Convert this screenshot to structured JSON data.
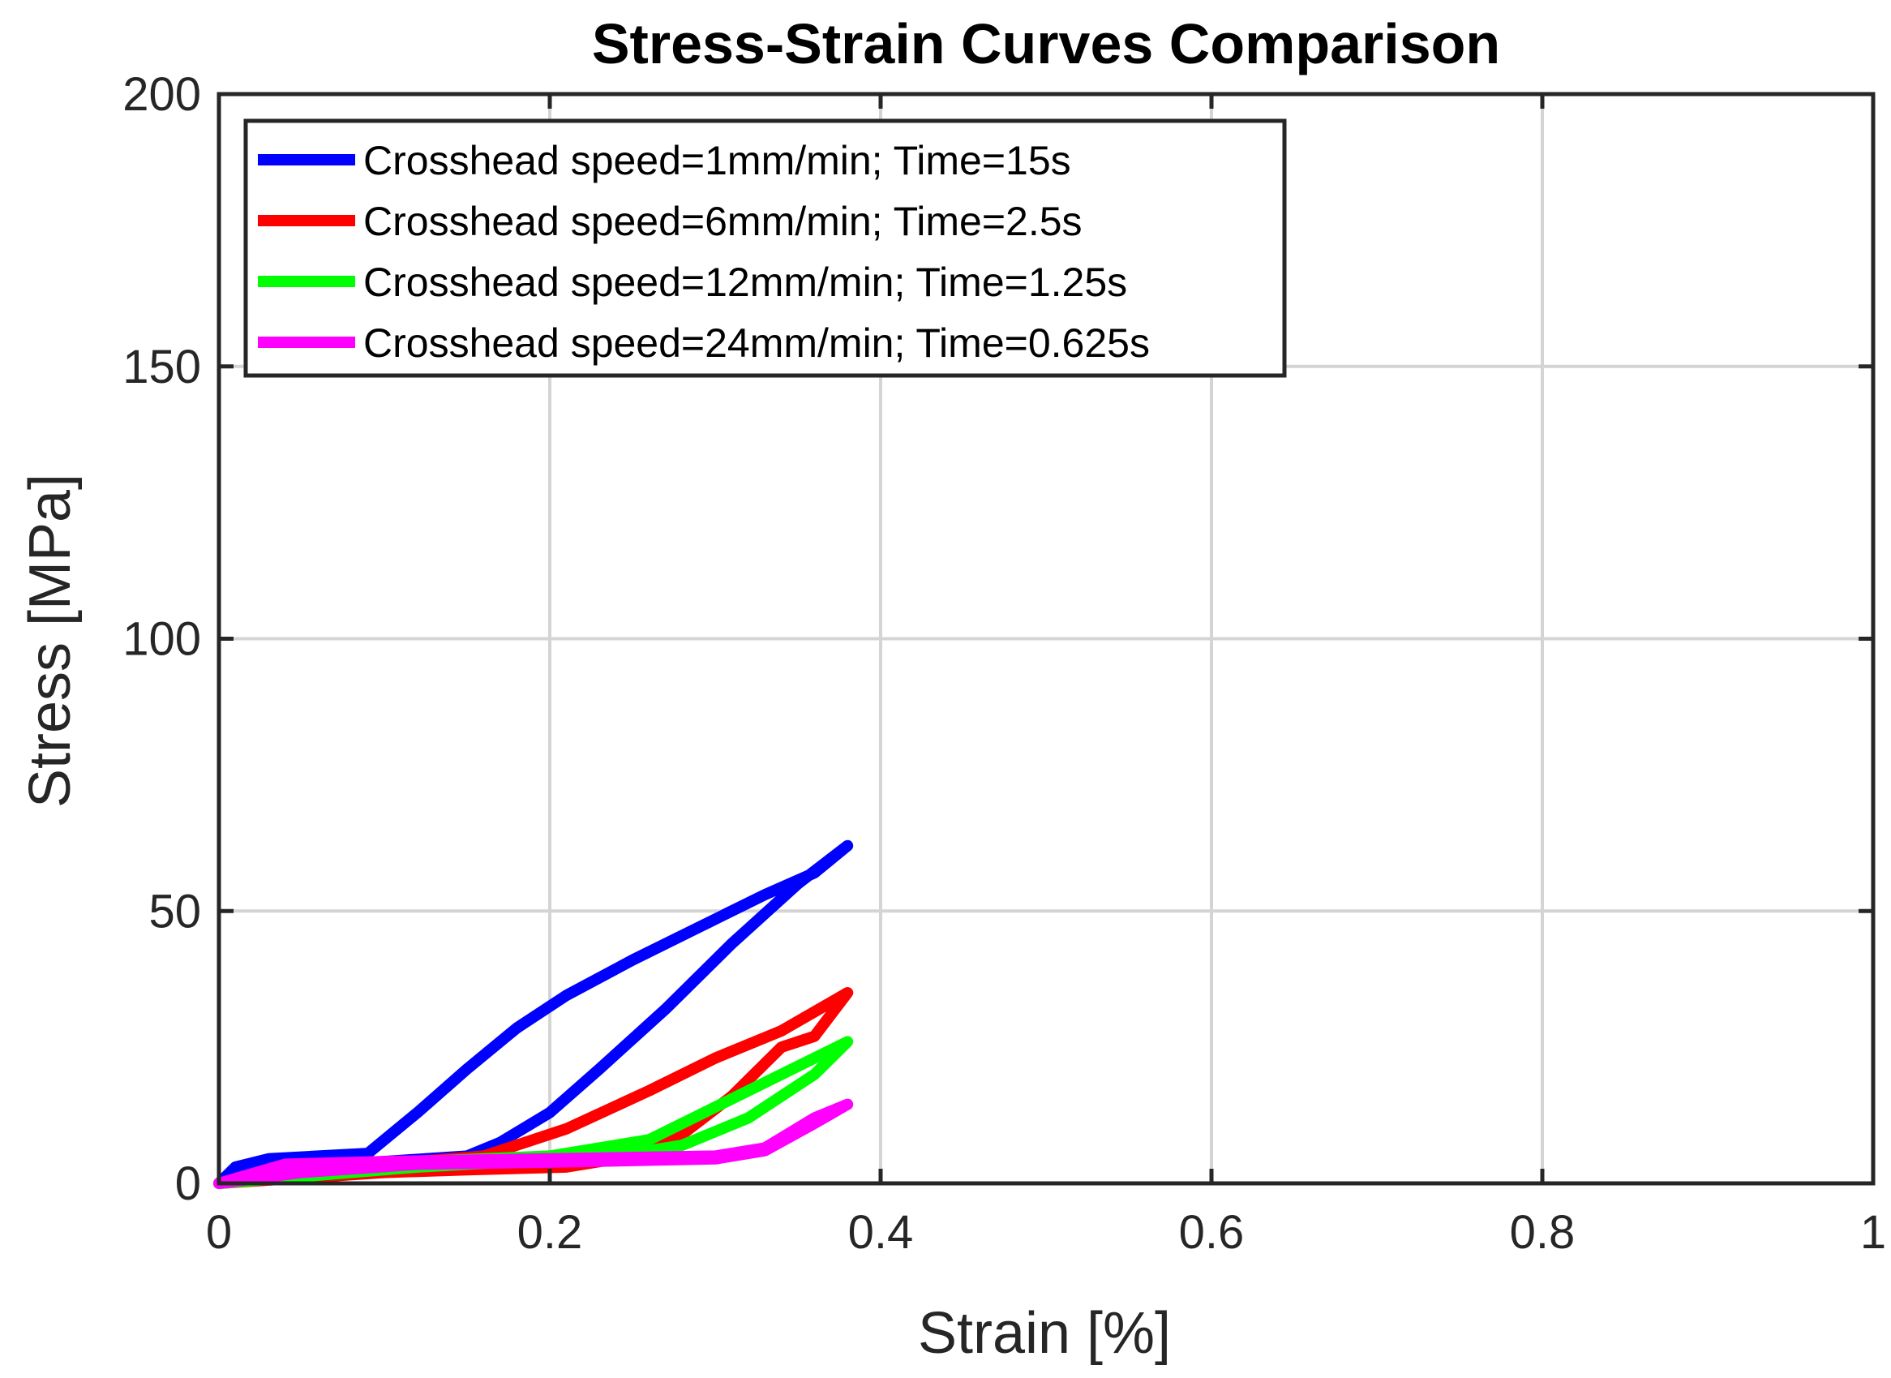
{
  "chart_data": {
    "type": "line",
    "title": "Stress-Strain Curves Comparison",
    "xlabel": "Strain [%]",
    "ylabel": "Stress [MPa]",
    "xlim": [
      0,
      1
    ],
    "ylim": [
      0,
      200
    ],
    "xticks": [
      0,
      0.2,
      0.4,
      0.6,
      0.8,
      1
    ],
    "xtick_labels": [
      "0",
      "0.2",
      "0.4",
      "0.6",
      "0.8",
      "1"
    ],
    "yticks": [
      0,
      50,
      100,
      150,
      200
    ],
    "ytick_labels": [
      "0",
      "50",
      "100",
      "150",
      "200"
    ],
    "grid": true,
    "legend_position": "top-left",
    "series": [
      {
        "name": "Crosshead speed=1mm/min; Time=15s",
        "color": "#0000ff",
        "x": [
          0,
          0.01,
          0.03,
          0.06,
          0.09,
          0.12,
          0.15,
          0.18,
          0.21,
          0.25,
          0.29,
          0.33,
          0.36,
          0.38,
          0.35,
          0.31,
          0.27,
          0.23,
          0.2,
          0.17,
          0.15,
          0.1,
          0.05,
          0.02,
          0
        ],
        "y": [
          0,
          3,
          4.5,
          5,
          5.5,
          13,
          21,
          28.5,
          34.5,
          41,
          47,
          53,
          57,
          62,
          55,
          44,
          32,
          21,
          13,
          7.5,
          5,
          4,
          3,
          1.5,
          0
        ]
      },
      {
        "name": "Crosshead speed=6mm/min; Time=2.5s",
        "color": "#ff0000",
        "x": [
          0,
          0.04,
          0.1,
          0.16,
          0.21,
          0.26,
          0.3,
          0.34,
          0.38,
          0.36,
          0.34,
          0.31,
          0.28,
          0.24,
          0.21,
          0.15,
          0.1,
          0.05,
          0
        ],
        "y": [
          0,
          2,
          3.5,
          5,
          10,
          17,
          23,
          28,
          35,
          27,
          25,
          16,
          9,
          4.5,
          3,
          2.5,
          2,
          1,
          0
        ]
      },
      {
        "name": "Crosshead speed=12mm/min; Time=1.25s",
        "color": "#00ff00",
        "x": [
          0,
          0.05,
          0.12,
          0.2,
          0.26,
          0.3,
          0.34,
          0.38,
          0.36,
          0.32,
          0.28,
          0.24,
          0.18,
          0.12,
          0.06,
          0
        ],
        "y": [
          0,
          2.5,
          4,
          5,
          8,
          14,
          20,
          26,
          20,
          12,
          7,
          5,
          4,
          3,
          1.5,
          0
        ]
      },
      {
        "name": "Crosshead speed=24mm/min; Time=0.625s",
        "color": "#ff00ff",
        "x": [
          0,
          0.04,
          0.1,
          0.2,
          0.3,
          0.33,
          0.36,
          0.38,
          0.36,
          0.33,
          0.3,
          0.22,
          0.12,
          0.05,
          0
        ],
        "y": [
          0,
          3.5,
          4,
          4.5,
          5,
          6.5,
          12,
          14.5,
          11,
          6,
          4.5,
          4,
          3.5,
          2,
          0
        ]
      }
    ]
  }
}
